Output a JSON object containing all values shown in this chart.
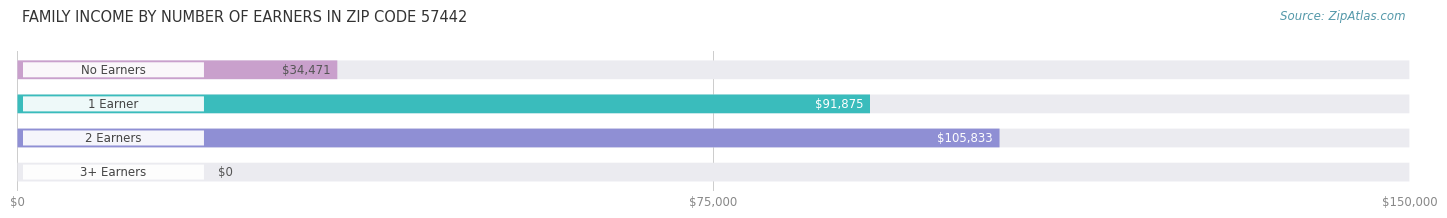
{
  "title": "FAMILY INCOME BY NUMBER OF EARNERS IN ZIP CODE 57442",
  "source": "Source: ZipAtlas.com",
  "categories": [
    "No Earners",
    "1 Earner",
    "2 Earners",
    "3+ Earners"
  ],
  "values": [
    34471,
    91875,
    105833,
    0
  ],
  "bar_colors": [
    "#c9a0cc",
    "#3abcbc",
    "#8f8fd4",
    "#f4a0b8"
  ],
  "value_label_colors": [
    "#555555",
    "#ffffff",
    "#ffffff",
    "#555555"
  ],
  "bar_track_color": "#ebebf0",
  "xlim": [
    0,
    150000
  ],
  "xticks": [
    0,
    75000,
    150000
  ],
  "xtick_labels": [
    "$0",
    "$75,000",
    "$150,000"
  ],
  "background_color": "#ffffff",
  "title_fontsize": 10.5,
  "source_fontsize": 8.5,
  "label_fontsize": 8.5,
  "tick_fontsize": 8.5,
  "bar_height": 0.55,
  "value_labels": [
    "$34,471",
    "$91,875",
    "$105,833",
    "$0"
  ]
}
